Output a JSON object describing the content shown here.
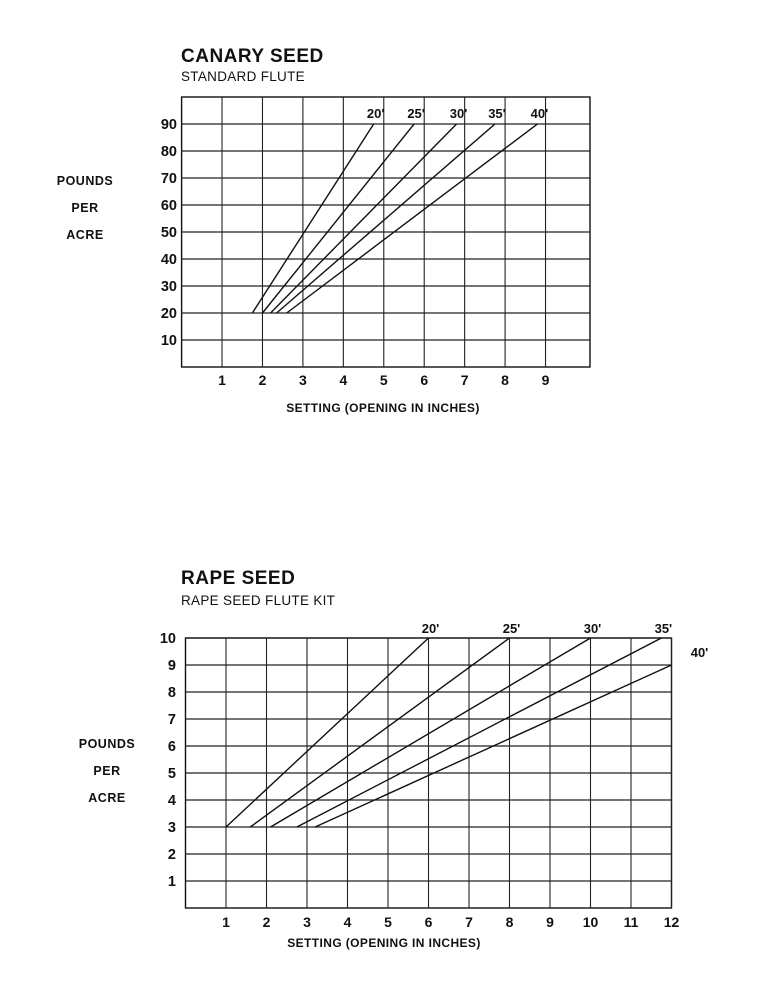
{
  "chart_data": [
    {
      "type": "line",
      "title": "CANARY SEED",
      "subtitle": "STANDARD FLUTE",
      "xlabel": "SETTING (OPENING IN INCHES)",
      "ylabel": [
        "POUNDS",
        "PER",
        "ACRE"
      ],
      "x_ticks": [
        1,
        2,
        3,
        4,
        5,
        6,
        7,
        8,
        9
      ],
      "y_ticks": [
        10,
        20,
        30,
        40,
        50,
        60,
        70,
        80,
        90
      ],
      "xlim": [
        0,
        10.1
      ],
      "ylim": [
        0,
        100
      ],
      "grid": true,
      "legend_position": "line-end labels above top",
      "series": [
        {
          "name": "20'",
          "x": [
            1.75,
            4.75
          ],
          "y": [
            20,
            90
          ]
        },
        {
          "name": "25'",
          "x": [
            2.0,
            5.75
          ],
          "y": [
            20,
            90
          ]
        },
        {
          "name": "30'",
          "x": [
            2.2,
            6.8
          ],
          "y": [
            20,
            90
          ]
        },
        {
          "name": "35'",
          "x": [
            2.35,
            7.75
          ],
          "y": [
            20,
            90
          ]
        },
        {
          "name": "40'",
          "x": [
            2.6,
            8.8
          ],
          "y": [
            20,
            90
          ]
        }
      ]
    },
    {
      "type": "line",
      "title": "RAPE SEED",
      "subtitle": "RAPE SEED FLUTE KIT",
      "xlabel": "SETTING (OPENING IN INCHES)",
      "ylabel": [
        "POUNDS",
        "PER",
        "ACRE"
      ],
      "x_ticks": [
        1,
        2,
        3,
        4,
        5,
        6,
        7,
        8,
        9,
        10,
        11,
        12
      ],
      "y_ticks": [
        1,
        2,
        3,
        4,
        5,
        6,
        7,
        8,
        9,
        10
      ],
      "xlim": [
        0,
        12
      ],
      "ylim": [
        0,
        10
      ],
      "grid": true,
      "legend_position": "line-end labels above top / right",
      "series": [
        {
          "name": "20'",
          "x": [
            1.0,
            6.0
          ],
          "y": [
            3,
            10
          ]
        },
        {
          "name": "25'",
          "x": [
            1.6,
            8.0
          ],
          "y": [
            3,
            10
          ]
        },
        {
          "name": "30'",
          "x": [
            2.1,
            10.0
          ],
          "y": [
            3,
            10
          ]
        },
        {
          "name": "35'",
          "x": [
            2.75,
            11.75
          ],
          "y": [
            3,
            10
          ]
        },
        {
          "name": "40'",
          "x": [
            3.2,
            12.0
          ],
          "y": [
            3,
            9
          ]
        }
      ]
    }
  ]
}
